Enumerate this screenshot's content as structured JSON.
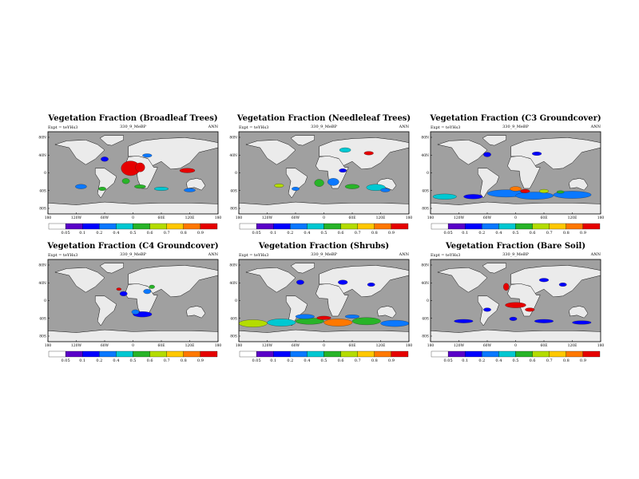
{
  "chart_data": {
    "type": "heatmap",
    "experiment": "Expt = teYHs3",
    "run_id": "330_9_MeBP",
    "season": "ANN",
    "x_ticks": [
      "180",
      "120W",
      "60W",
      "0",
      "60E",
      "120E",
      "180"
    ],
    "y_ticks": [
      "80N",
      "40N",
      "0",
      "40S",
      "80S"
    ],
    "colorbar": {
      "levels": [
        "0.05",
        "0.1",
        "0.2",
        "0.4",
        "0.5",
        "0.6",
        "0.7",
        "0.8",
        "0.9"
      ],
      "colors": [
        "#ffffff",
        "#5a00c8",
        "#0000ff",
        "#0a78ff",
        "#00c8d2",
        "#28b428",
        "#b4dc00",
        "#ffc800",
        "#ff7800",
        "#e60000"
      ]
    },
    "panels": [
      {
        "title": "Vegetation Fraction (Broadleaf Trees)",
        "blobs": [
          {
            "x": -5,
            "y": 10,
            "rx": 20,
            "ry": 16,
            "v": 0.95
          },
          {
            "x": 15,
            "y": 12,
            "rx": 10,
            "ry": 10,
            "v": 0.9
          },
          {
            "x": 115,
            "y": 5,
            "rx": 16,
            "ry": 5,
            "v": 0.95
          },
          {
            "x": -60,
            "y": 30,
            "rx": 8,
            "ry": 5,
            "v": 0.1
          },
          {
            "x": 30,
            "y": 38,
            "rx": 10,
            "ry": 4,
            "v": 0.2
          },
          {
            "x": -15,
            "y": -18,
            "rx": 8,
            "ry": 6,
            "v": 0.5
          },
          {
            "x": 15,
            "y": -30,
            "rx": 12,
            "ry": 4,
            "v": 0.5
          },
          {
            "x": 60,
            "y": -35,
            "rx": 15,
            "ry": 4,
            "v": 0.45
          },
          {
            "x": 120,
            "y": -38,
            "rx": 12,
            "ry": 4,
            "v": 0.3
          },
          {
            "x": -110,
            "y": -30,
            "rx": 12,
            "ry": 5,
            "v": 0.35
          },
          {
            "x": -65,
            "y": -35,
            "rx": 8,
            "ry": 4,
            "v": 0.55
          }
        ]
      },
      {
        "title": "Vegetation Fraction (Needleleaf Trees)",
        "blobs": [
          {
            "x": 45,
            "y": 50,
            "rx": 12,
            "ry": 5,
            "v": 0.45
          },
          {
            "x": 95,
            "y": 43,
            "rx": 10,
            "ry": 4,
            "v": 0.95
          },
          {
            "x": -10,
            "y": -22,
            "rx": 10,
            "ry": 8,
            "v": 0.5
          },
          {
            "x": 20,
            "y": -20,
            "rx": 12,
            "ry": 8,
            "v": 0.3
          },
          {
            "x": 60,
            "y": -30,
            "rx": 15,
            "ry": 5,
            "v": 0.5
          },
          {
            "x": 110,
            "y": -32,
            "rx": 20,
            "ry": 7,
            "v": 0.45
          },
          {
            "x": 130,
            "y": -38,
            "rx": 10,
            "ry": 4,
            "v": 0.3
          },
          {
            "x": -95,
            "y": -28,
            "rx": 10,
            "ry": 4,
            "v": 0.6
          },
          {
            "x": -60,
            "y": -35,
            "rx": 8,
            "ry": 4,
            "v": 0.35
          },
          {
            "x": 40,
            "y": 5,
            "rx": 8,
            "ry": 4,
            "v": 0.1
          }
        ]
      },
      {
        "title": "Vegetation Fraction (C3 Groundcover)",
        "blobs": [
          {
            "x": -20,
            "y": -45,
            "rx": 40,
            "ry": 8,
            "v": 0.2
          },
          {
            "x": 40,
            "y": -50,
            "rx": 40,
            "ry": 8,
            "v": 0.3
          },
          {
            "x": 120,
            "y": -48,
            "rx": 40,
            "ry": 8,
            "v": 0.25
          },
          {
            "x": -150,
            "y": -52,
            "rx": 25,
            "ry": 6,
            "v": 0.4
          },
          {
            "x": -90,
            "y": -52,
            "rx": 20,
            "ry": 5,
            "v": 0.15
          },
          {
            "x": 0,
            "y": -35,
            "rx": 12,
            "ry": 5,
            "v": 0.8
          },
          {
            "x": 20,
            "y": -40,
            "rx": 10,
            "ry": 4,
            "v": 0.95
          },
          {
            "x": 60,
            "y": -40,
            "rx": 10,
            "ry": 4,
            "v": 0.6
          },
          {
            "x": 95,
            "y": -42,
            "rx": 8,
            "ry": 3,
            "v": 0.5
          },
          {
            "x": -60,
            "y": 40,
            "rx": 8,
            "ry": 5,
            "v": 0.1
          },
          {
            "x": 45,
            "y": 42,
            "rx": 10,
            "ry": 4,
            "v": 0.1
          }
        ]
      },
      {
        "title": "Vegetation Fraction (C4 Groundcover)",
        "blobs": [
          {
            "x": 20,
            "y": -30,
            "rx": 20,
            "ry": 6,
            "v": 0.12
          },
          {
            "x": 5,
            "y": -25,
            "rx": 8,
            "ry": 5,
            "v": 0.2
          },
          {
            "x": -20,
            "y": 15,
            "rx": 8,
            "ry": 5,
            "v": 0.1
          },
          {
            "x": 30,
            "y": 20,
            "rx": 8,
            "ry": 5,
            "v": 0.3
          },
          {
            "x": 40,
            "y": 30,
            "rx": 6,
            "ry": 4,
            "v": 0.5
          },
          {
            "x": -30,
            "y": 25,
            "rx": 5,
            "ry": 3,
            "v": 0.9
          }
        ]
      },
      {
        "title": "Vegetation Fraction (Shrubs)",
        "blobs": [
          {
            "x": -150,
            "y": -50,
            "rx": 30,
            "ry": 8,
            "v": 0.6
          },
          {
            "x": -90,
            "y": -48,
            "rx": 30,
            "ry": 8,
            "v": 0.4
          },
          {
            "x": -30,
            "y": -45,
            "rx": 30,
            "ry": 7,
            "v": 0.5
          },
          {
            "x": 30,
            "y": -48,
            "rx": 30,
            "ry": 8,
            "v": 0.8
          },
          {
            "x": 90,
            "y": -45,
            "rx": 30,
            "ry": 8,
            "v": 0.5
          },
          {
            "x": 150,
            "y": -50,
            "rx": 30,
            "ry": 7,
            "v": 0.2
          },
          {
            "x": -40,
            "y": -35,
            "rx": 20,
            "ry": 5,
            "v": 0.25
          },
          {
            "x": 0,
            "y": -38,
            "rx": 15,
            "ry": 4,
            "v": 0.9
          },
          {
            "x": 60,
            "y": -35,
            "rx": 15,
            "ry": 4,
            "v": 0.3
          },
          {
            "x": -50,
            "y": 40,
            "rx": 8,
            "ry": 5,
            "v": 0.1
          },
          {
            "x": 40,
            "y": 40,
            "rx": 10,
            "ry": 5,
            "v": 0.15
          },
          {
            "x": 100,
            "y": 35,
            "rx": 8,
            "ry": 4,
            "v": 0.1
          }
        ]
      },
      {
        "title": "Vegetation Fraction (Bare Soil)",
        "blobs": [
          {
            "x": 0,
            "y": -10,
            "rx": 22,
            "ry": 6,
            "v": 0.95
          },
          {
            "x": -20,
            "y": 30,
            "rx": 6,
            "ry": 8,
            "v": 0.95
          },
          {
            "x": 30,
            "y": -20,
            "rx": 10,
            "ry": 4,
            "v": 0.9
          },
          {
            "x": 60,
            "y": 45,
            "rx": 10,
            "ry": 4,
            "v": 0.15
          },
          {
            "x": 100,
            "y": 35,
            "rx": 8,
            "ry": 4,
            "v": 0.1
          },
          {
            "x": -60,
            "y": -20,
            "rx": 8,
            "ry": 4,
            "v": 0.1
          },
          {
            "x": -110,
            "y": -45,
            "rx": 20,
            "ry": 4,
            "v": 0.12
          },
          {
            "x": 60,
            "y": -45,
            "rx": 20,
            "ry": 4,
            "v": 0.1
          },
          {
            "x": 140,
            "y": -48,
            "rx": 20,
            "ry": 4,
            "v": 0.1
          },
          {
            "x": -5,
            "y": -40,
            "rx": 8,
            "ry": 4,
            "v": 0.12
          }
        ]
      }
    ]
  }
}
